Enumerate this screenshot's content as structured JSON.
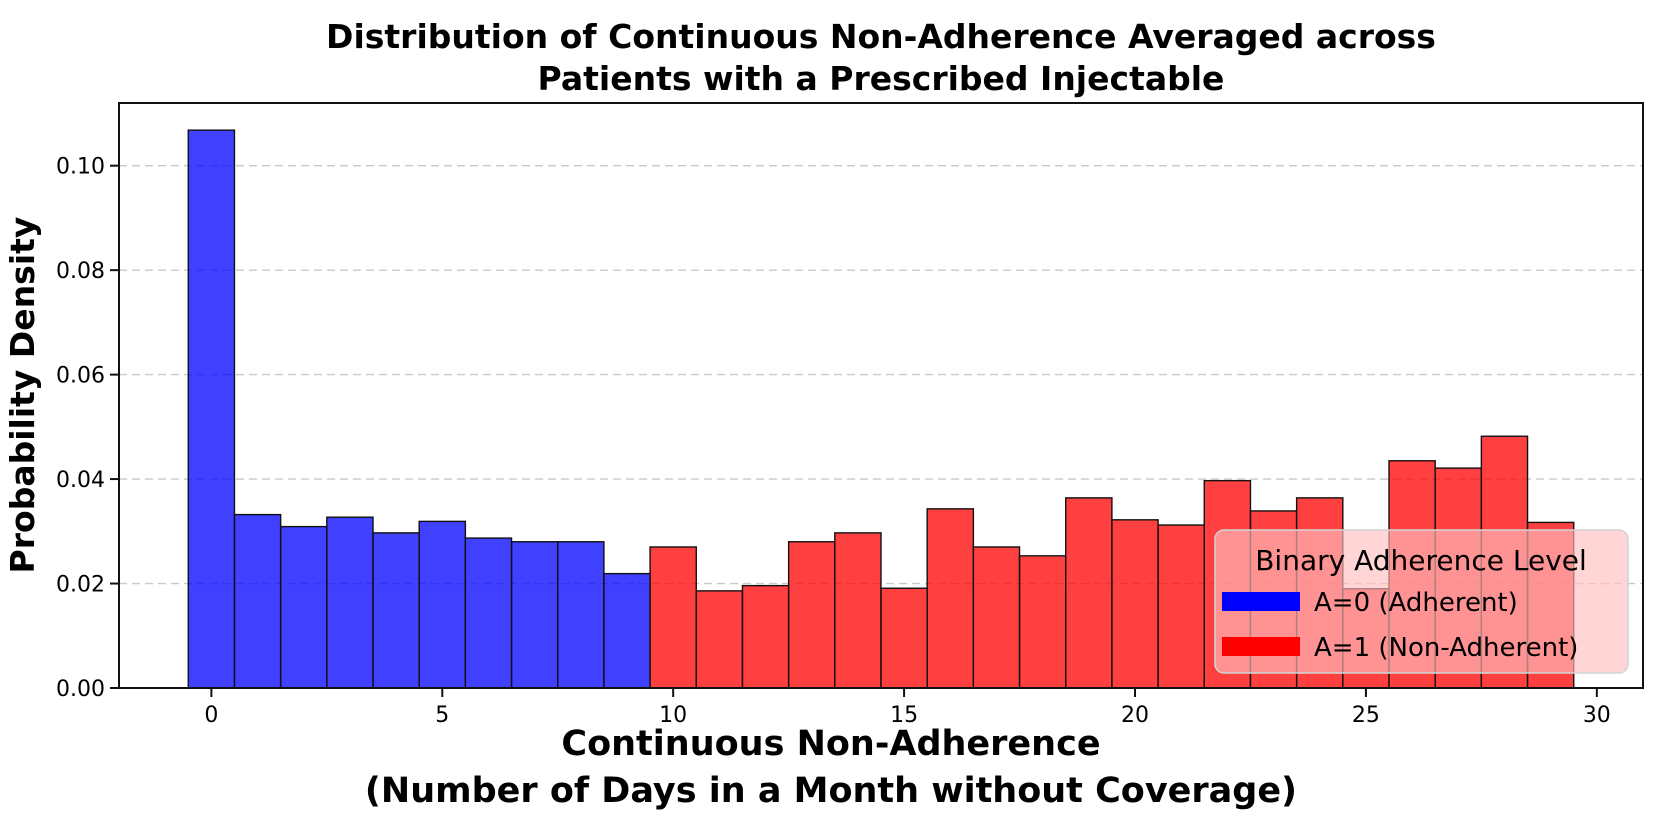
{
  "figure": {
    "title_lines": [
      "Distribution of Continuous Non-Adherence Averaged across",
      "Patients with a Prescribed Injectable"
    ],
    "xlabel_lines": [
      "Continuous Non-Adherence",
      "(Number of Days in a Month without Coverage)"
    ],
    "ylabel": "Probability Density"
  },
  "legend": {
    "title": "Binary Adherence Level",
    "position": "lower right",
    "background_tint": "#ffbebe",
    "border_color": "#d4d4d4",
    "items": [
      {
        "label": "A=0 (Adherent)",
        "color": "#0000ff"
      },
      {
        "label": "A=1 (Non-Adherent)",
        "color": "#ff0000"
      }
    ]
  },
  "chart_data": {
    "type": "bar",
    "subtype": "histogram",
    "title": "Distribution of Continuous Non-Adherence Averaged across Patients with a Prescribed Injectable",
    "xlabel": "Continuous Non-Adherence (Number of Days in a Month without Coverage)",
    "ylabel": "Probability Density",
    "bin_centers": [
      0,
      1,
      2,
      3,
      4,
      5,
      6,
      7,
      8,
      9,
      10,
      11,
      12,
      13,
      14,
      15,
      16,
      17,
      18,
      19,
      20,
      21,
      22,
      23,
      24,
      25,
      26,
      27,
      28,
      29
    ],
    "bin_width": 1,
    "values": [
      0.1068,
      0.0332,
      0.0309,
      0.0327,
      0.0297,
      0.0319,
      0.0287,
      0.028,
      0.028,
      0.0219,
      0.027,
      0.0186,
      0.0196,
      0.028,
      0.0297,
      0.0191,
      0.0343,
      0.027,
      0.0253,
      0.0364,
      0.0322,
      0.0312,
      0.0397,
      0.0339,
      0.0364,
      0.019,
      0.0435,
      0.0421,
      0.0482,
      0.0317
    ],
    "series": [
      {
        "name": "A=0 (Adherent)",
        "color": "#0000ff",
        "bar_fill": "rgba(0,0,255,0.75)",
        "bin_range": [
          0,
          9
        ]
      },
      {
        "name": "A=1 (Non-Adherent)",
        "color": "#ff0000",
        "bar_fill": "rgba(255,0,0,0.75)",
        "bin_range": [
          10,
          29
        ]
      }
    ],
    "bar_edge_color": "#111111",
    "x_ticks": [
      0,
      5,
      10,
      15,
      20,
      25,
      30
    ],
    "y_ticks": [
      {
        "v": 0.0,
        "label": "0.00"
      },
      {
        "v": 0.02,
        "label": "0.02"
      },
      {
        "v": 0.04,
        "label": "0.04"
      },
      {
        "v": 0.06,
        "label": "0.06"
      },
      {
        "v": 0.08,
        "label": "0.08"
      },
      {
        "v": 0.1,
        "label": "0.10"
      }
    ],
    "xlim": [
      -2,
      31
    ],
    "ylim": [
      0,
      0.112
    ],
    "grid": "horizontal dashed",
    "legend_position": "lower right"
  }
}
